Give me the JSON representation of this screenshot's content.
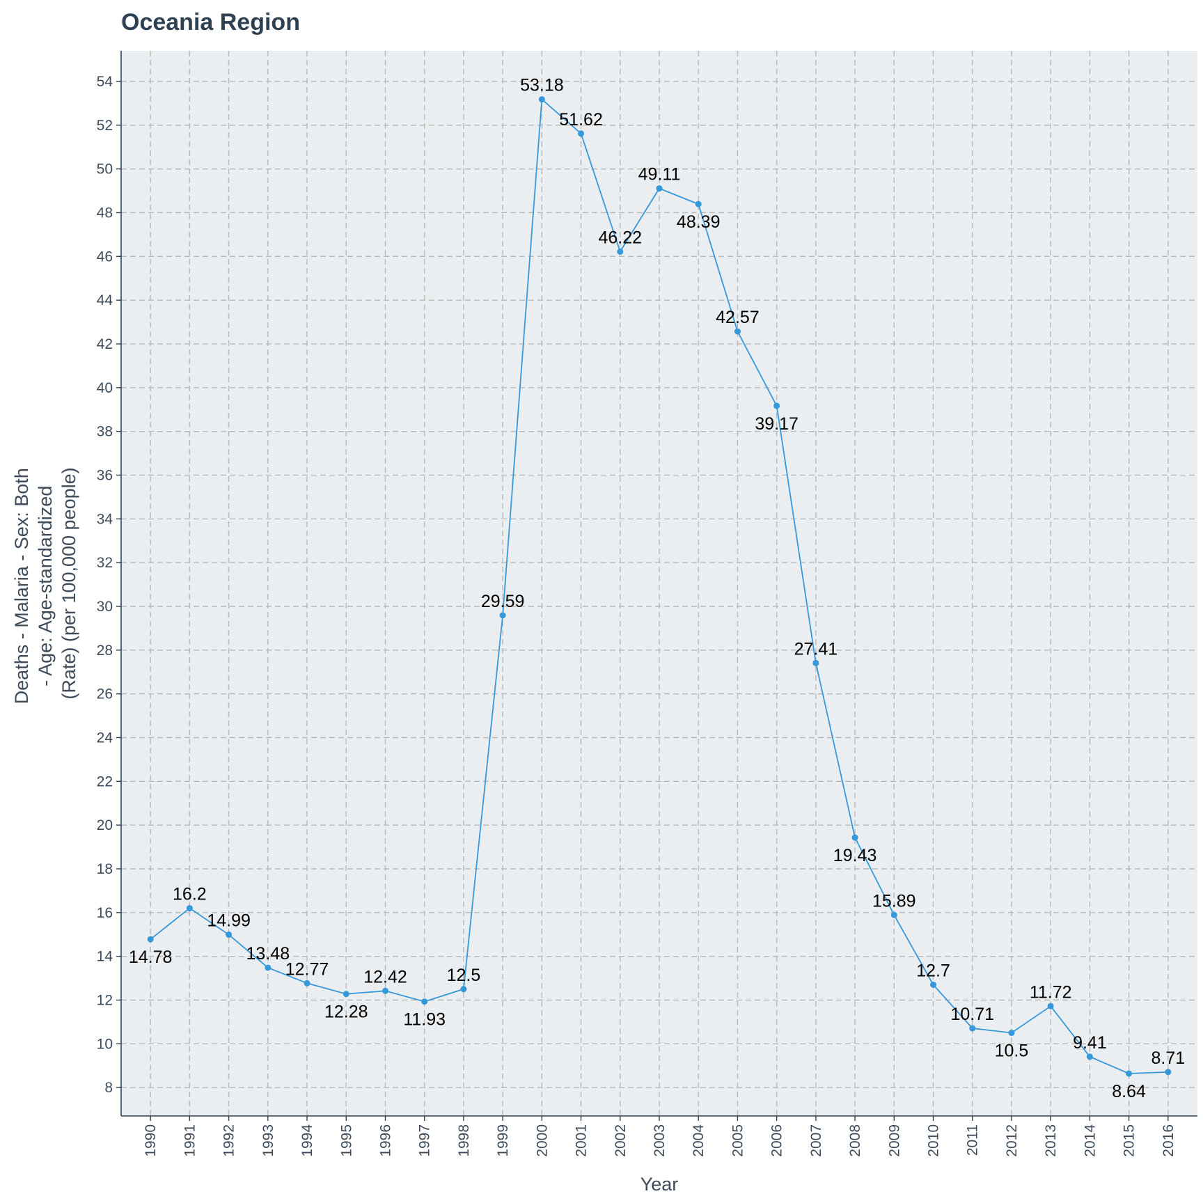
{
  "chart_data": {
    "type": "line",
    "title": "Oceania Region",
    "xlabel": "Year",
    "ylabel_lines": [
      "Deaths - Malaria - Sex: Both",
      "- Age: Age-standardized",
      "(Rate) (per 100,000 people)"
    ],
    "x": [
      1990,
      1991,
      1992,
      1993,
      1994,
      1995,
      1996,
      1997,
      1998,
      1999,
      2000,
      2001,
      2002,
      2003,
      2004,
      2005,
      2006,
      2007,
      2008,
      2009,
      2010,
      2011,
      2012,
      2013,
      2014,
      2015,
      2016
    ],
    "series": [
      {
        "values": [
          14.78,
          16.2,
          14.99,
          13.48,
          12.77,
          12.28,
          12.42,
          11.93,
          12.5,
          29.59,
          53.18,
          51.62,
          46.22,
          49.11,
          48.39,
          42.57,
          39.17,
          27.41,
          19.43,
          15.89,
          12.7,
          10.71,
          10.5,
          11.72,
          9.41,
          8.64,
          8.71
        ],
        "labels": [
          "14.78",
          "16.2",
          "14.99",
          "13.48",
          "12.77",
          "12.28",
          "12.42",
          "11.93",
          "12.5",
          "29.59",
          "53.18",
          "51.62",
          "46.22",
          "49.11",
          "48.39",
          "42.57",
          "39.17",
          "27.41",
          "19.43",
          "15.89",
          "12.7",
          "10.71",
          "10.5",
          "11.72",
          "9.41",
          "8.64",
          "8.71"
        ],
        "label_position": [
          "below",
          "above",
          "above",
          "above",
          "above",
          "below",
          "above",
          "below",
          "above",
          "above",
          "above",
          "above",
          "above",
          "above",
          "below",
          "above",
          "below",
          "above",
          "below",
          "above",
          "above",
          "above",
          "below",
          "above",
          "above",
          "below",
          "above"
        ],
        "color": "#3498db"
      }
    ],
    "ylim": [
      6.7,
      55.4
    ],
    "yticks": [
      8,
      10,
      12,
      14,
      16,
      18,
      20,
      22,
      24,
      26,
      28,
      30,
      32,
      34,
      36,
      38,
      40,
      42,
      44,
      46,
      48,
      50,
      52,
      54
    ],
    "xlim": [
      1989.25,
      2016.75
    ],
    "grid": true,
    "panel_background": "#ebeef0",
    "legend": "none"
  }
}
